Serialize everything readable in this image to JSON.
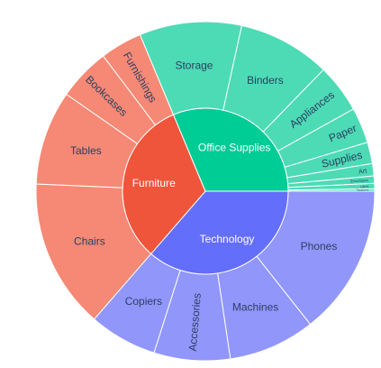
{
  "chart_data": {
    "type": "sunburst",
    "colors": {
      "Technology": "#636efa",
      "Furniture": "#ef553b",
      "Office Supplies": "#00cc96",
      "Technology_child": "#9196fb",
      "Furniture_child": "#f58975",
      "Office Supplies_child": "#4ddbb6"
    },
    "hierarchy": [
      {
        "name": "Technology",
        "value": 836,
        "children": [
          {
            "name": "Phones",
            "value": 330
          },
          {
            "name": "Machines",
            "value": 190
          },
          {
            "name": "Accessories",
            "value": 167
          },
          {
            "name": "Copiers",
            "value": 149
          }
        ]
      },
      {
        "name": "Furniture",
        "value": 742,
        "children": [
          {
            "name": "Chairs",
            "value": 328
          },
          {
            "name": "Tables",
            "value": 207
          },
          {
            "name": "Bookcases",
            "value": 115
          },
          {
            "name": "Furnishings",
            "value": 92
          }
        ]
      },
      {
        "name": "Office Supplies",
        "value": 719,
        "children": [
          {
            "name": "Storage",
            "value": 224
          },
          {
            "name": "Binders",
            "value": 203
          },
          {
            "name": "Appliances",
            "value": 107
          },
          {
            "name": "Paper",
            "value": 78
          },
          {
            "name": "Supplies",
            "value": 47
          },
          {
            "name": "Art",
            "value": 27
          },
          {
            "name": "Envelopes",
            "value": 16
          },
          {
            "name": "Labels",
            "value": 12
          },
          {
            "name": "Fasteners",
            "value": 5
          }
        ]
      }
    ]
  }
}
